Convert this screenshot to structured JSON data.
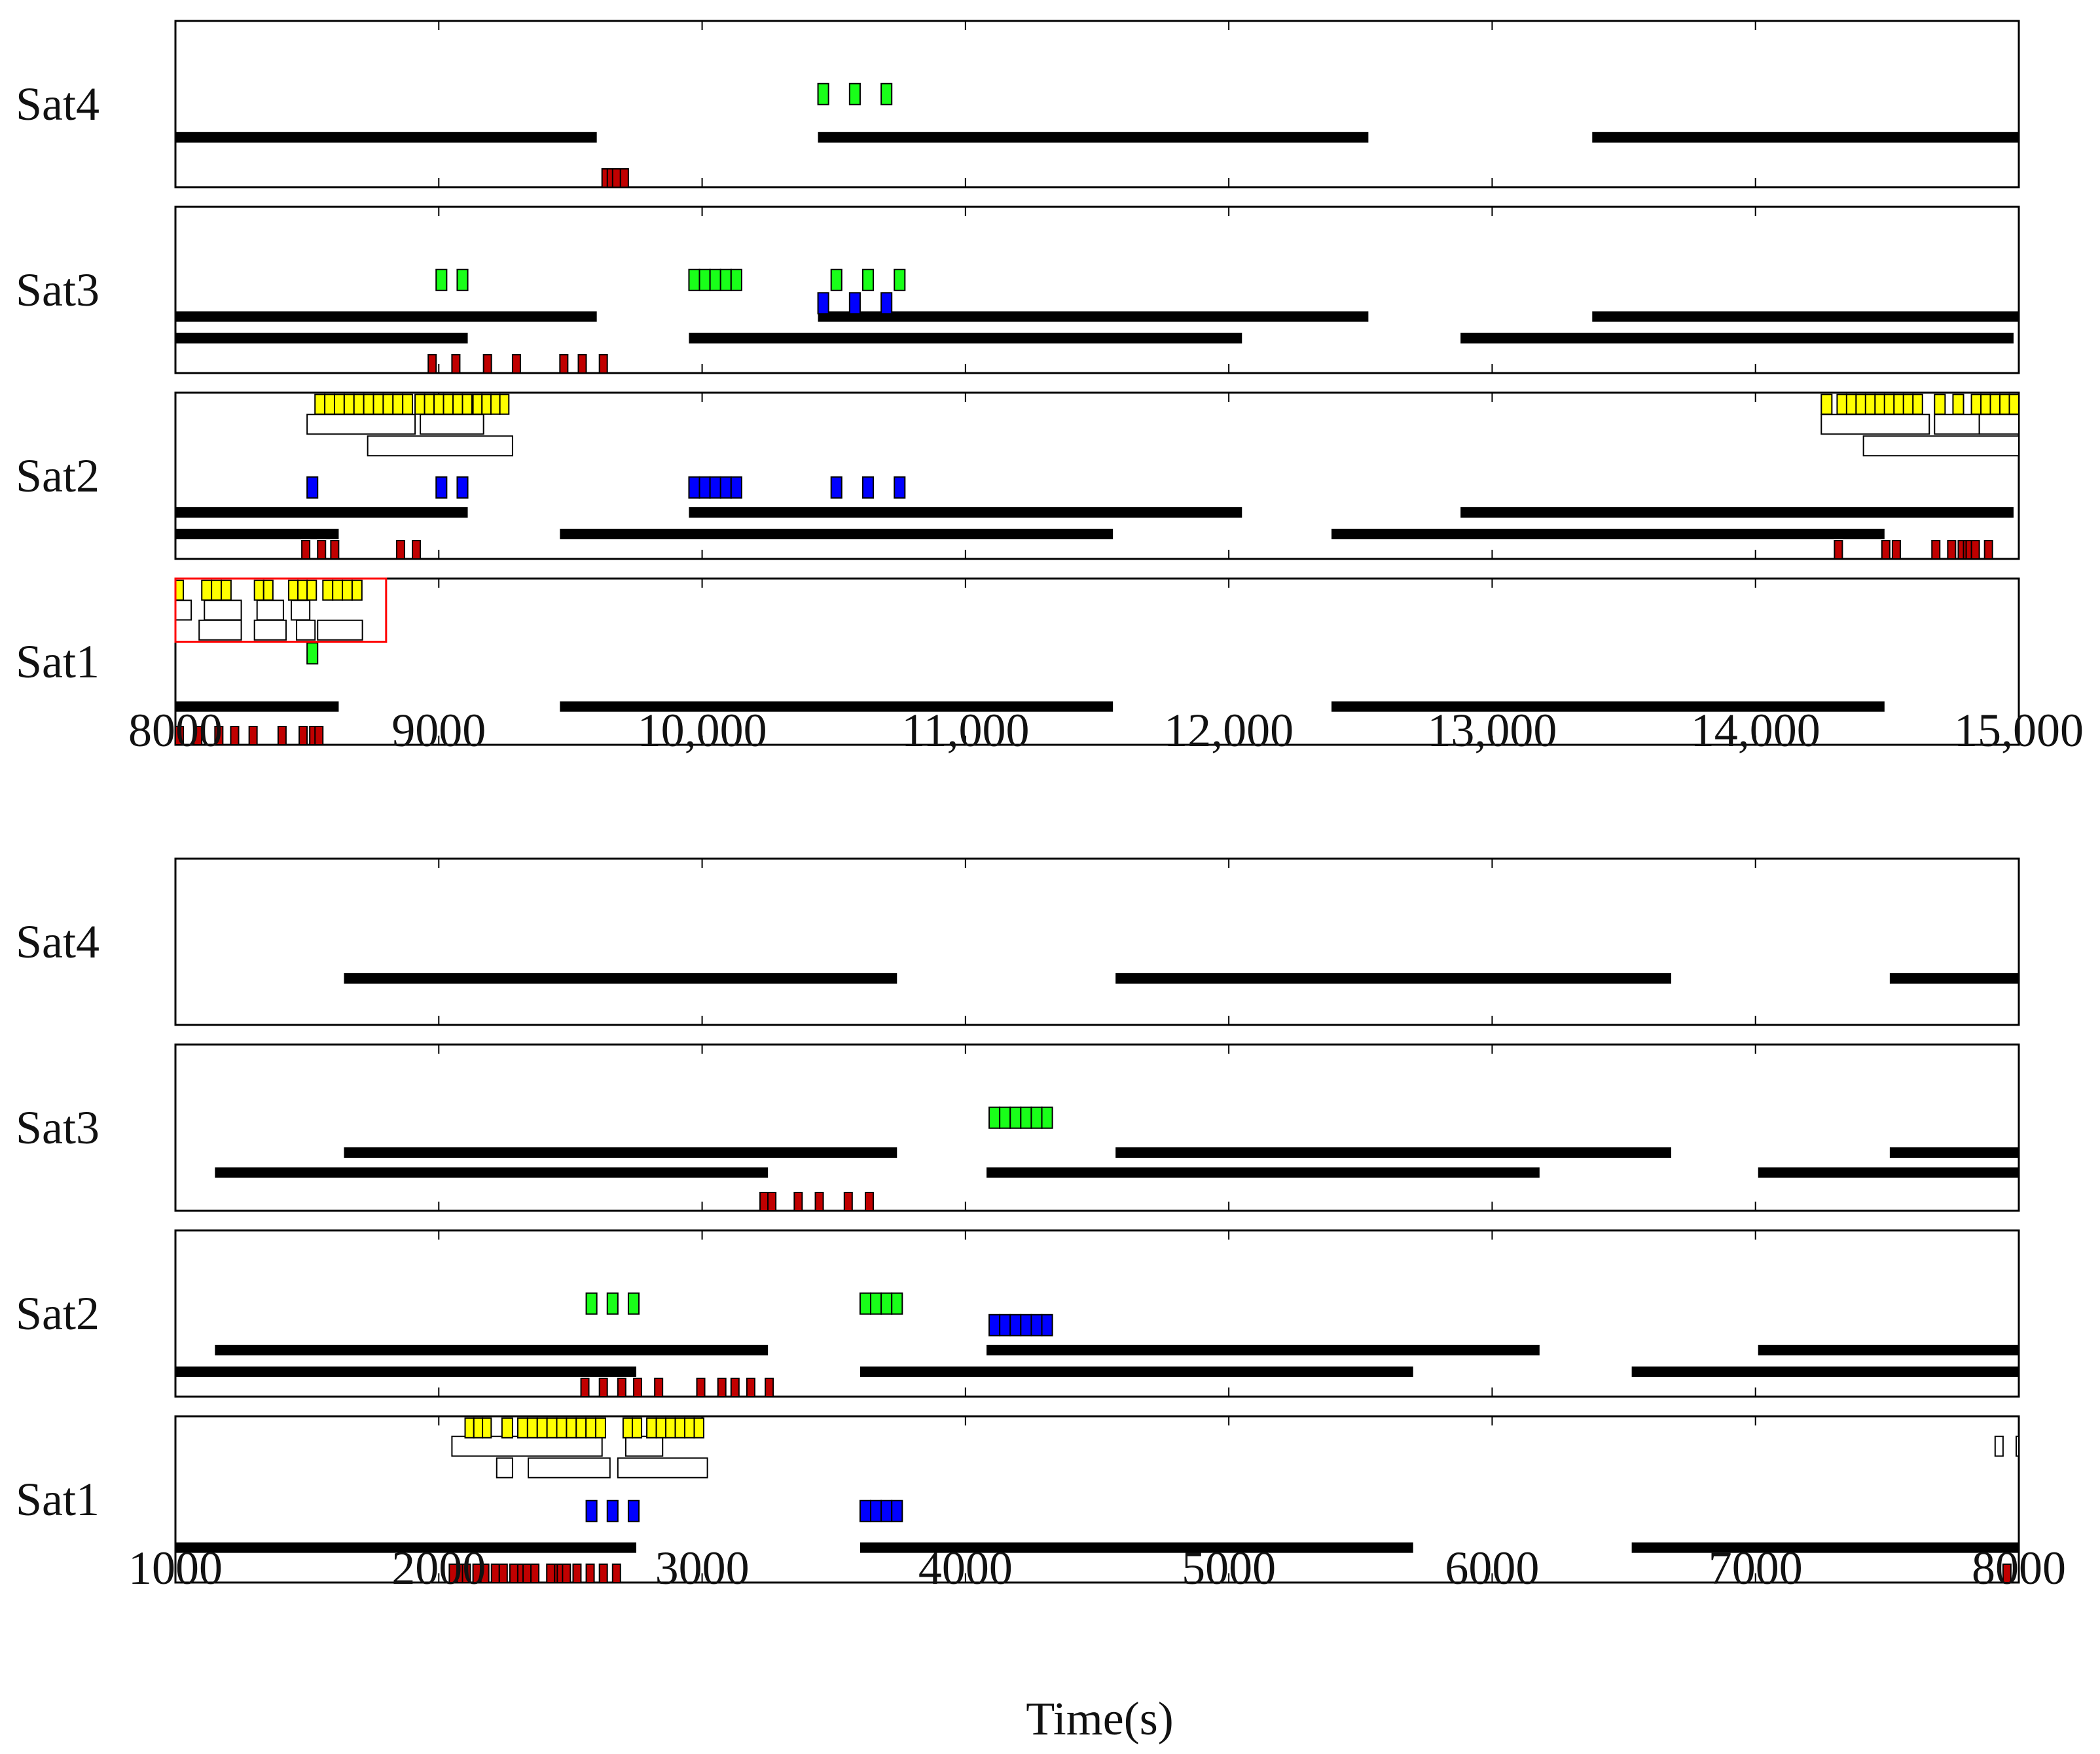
{
  "colors": {
    "bar": "#000000",
    "green": "#19ff19",
    "blue": "#0000ff",
    "yellow": "#ffff00",
    "red": "#c00000",
    "highlight": "#ff0000",
    "frame": "#000000"
  },
  "chart_data": [
    {
      "type": "timeline",
      "title": "",
      "xlabel": "",
      "xlim": [
        8000,
        15000
      ],
      "xticks": [
        8000,
        9000,
        10000,
        11000,
        12000,
        13000,
        14000,
        15000
      ],
      "xtick_labels": [
        "8000",
        "9000",
        "10,000",
        "11,000",
        "12,000",
        "13,000",
        "14,000",
        "15,000"
      ],
      "satellites": [
        {
          "name": "Sat4",
          "visibility_windows": [
            {
              "lane": 0.3,
              "segments": [
                [
                  8000,
                  9600
                ],
                [
                  10440,
                  12530
                ],
                [
                  13380,
                  15000
                ]
              ]
            }
          ],
          "green": [
            {
              "lane": 0.56,
              "start": 10440,
              "count": 1,
              "w": 40
            },
            {
              "lane": 0.56,
              "start": 10560,
              "count": 1,
              "w": 40
            },
            {
              "lane": 0.56,
              "start": 10680,
              "count": 1,
              "w": 40
            }
          ],
          "blue": [],
          "yellow": [],
          "outline": [],
          "red": [
            9620,
            9640,
            9660,
            9690
          ]
        },
        {
          "name": "Sat3",
          "visibility_windows": [
            {
              "lane": 0.34,
              "segments": [
                [
                  8000,
                  9600
                ],
                [
                  10440,
                  12530
                ],
                [
                  13380,
                  15000
                ]
              ]
            },
            {
              "lane": 0.21,
              "segments": [
                [
                  8000,
                  9110
                ],
                [
                  9950,
                  12050
                ],
                [
                  12880,
                  14980
                ]
              ]
            }
          ],
          "green": [
            {
              "lane": 0.56,
              "start": 8990,
              "count": 1,
              "w": 40
            },
            {
              "lane": 0.56,
              "start": 9070,
              "count": 1,
              "w": 40
            },
            {
              "lane": 0.56,
              "start": 9950,
              "count": 5,
              "w": 40
            },
            {
              "lane": 0.56,
              "start": 10490,
              "count": 1,
              "w": 40
            },
            {
              "lane": 0.56,
              "start": 10610,
              "count": 1,
              "w": 40
            },
            {
              "lane": 0.56,
              "start": 10730,
              "count": 1,
              "w": 40
            }
          ],
          "blue": [
            {
              "lane": 0.42,
              "start": 10440,
              "count": 1,
              "w": 40
            },
            {
              "lane": 0.42,
              "start": 10560,
              "count": 1,
              "w": 40
            },
            {
              "lane": 0.42,
              "start": 10680,
              "count": 1,
              "w": 40
            }
          ],
          "yellow": [],
          "outline": [],
          "red": [
            8960,
            9050,
            9170,
            9280,
            9460,
            9530,
            9610
          ]
        },
        {
          "name": "Sat2",
          "visibility_windows": [
            {
              "lane": 0.28,
              "segments": [
                [
                  8000,
                  9110
                ],
                [
                  9950,
                  12050
                ],
                [
                  12880,
                  14980
                ]
              ]
            },
            {
              "lane": 0.15,
              "segments": [
                [
                  8000,
                  8620
                ],
                [
                  9460,
                  11560
                ],
                [
                  12390,
                  14490
                ]
              ]
            }
          ],
          "green": [],
          "blue": [
            {
              "lane": 0.43,
              "start": 8500,
              "count": 1,
              "w": 40
            },
            {
              "lane": 0.43,
              "start": 8990,
              "count": 1,
              "w": 40
            },
            {
              "lane": 0.43,
              "start": 9070,
              "count": 1,
              "w": 40
            },
            {
              "lane": 0.43,
              "start": 9950,
              "count": 5,
              "w": 40
            },
            {
              "lane": 0.43,
              "start": 10490,
              "count": 1,
              "w": 40
            },
            {
              "lane": 0.43,
              "start": 10610,
              "count": 1,
              "w": 40
            },
            {
              "lane": 0.43,
              "start": 10730,
              "count": 1,
              "w": 40
            }
          ],
          "yellow": [
            {
              "lane": 0.93,
              "start": 8530,
              "count": 10,
              "w": 37
            },
            {
              "lane": 0.93,
              "start": 8910,
              "count": 6,
              "w": 36
            },
            {
              "lane": 0.93,
              "start": 9130,
              "count": 4,
              "w": 34
            },
            {
              "lane": 0.93,
              "start": 14250,
              "count": 1,
              "w": 40
            },
            {
              "lane": 0.93,
              "start": 14310,
              "count": 9,
              "w": 36
            },
            {
              "lane": 0.93,
              "start": 14680,
              "count": 1,
              "w": 40
            },
            {
              "lane": 0.93,
              "start": 14750,
              "count": 1,
              "w": 40
            },
            {
              "lane": 0.93,
              "start": 14820,
              "count": 5,
              "w": 36
            }
          ],
          "outline": [
            {
              "lane": 0.81,
              "segments": [
                [
                  8500,
                  8910
                ],
                [
                  8930,
                  9170
                ],
                [
                  14250,
                  14660
                ],
                [
                  14680,
                  14850
                ],
                [
                  14850,
                  15000
                ]
              ]
            },
            {
              "lane": 0.68,
              "segments": [
                [
                  8730,
                  9280
                ],
                [
                  14410,
                  15000
                ]
              ]
            }
          ],
          "red": [
            8480,
            8540,
            8590,
            8840,
            8900,
            14300,
            14480,
            14520,
            14670,
            14730,
            14770,
            14790,
            14800,
            14820,
            14870
          ]
        },
        {
          "name": "Sat1",
          "visibility_windows": [
            {
              "lane": 0.23,
              "segments": [
                [
                  8000,
                  8620
                ],
                [
                  9460,
                  11560
                ],
                [
                  12390,
                  14490
                ]
              ]
            }
          ],
          "green": [
            {
              "lane": 0.55,
              "start": 8500,
              "count": 1,
              "w": 40
            }
          ],
          "blue": [],
          "yellow": [
            {
              "lane": 0.93,
              "start": 8000,
              "count": 1,
              "w": 30
            },
            {
              "lane": 0.93,
              "start": 8100,
              "count": 3,
              "w": 37
            },
            {
              "lane": 0.93,
              "start": 8300,
              "count": 2,
              "w": 35
            },
            {
              "lane": 0.93,
              "start": 8430,
              "count": 3,
              "w": 35
            },
            {
              "lane": 0.93,
              "start": 8560,
              "count": 4,
              "w": 37
            }
          ],
          "outline": [
            {
              "lane": 0.81,
              "segments": [
                [
                  8000,
                  8060
                ],
                [
                  8110,
                  8250
                ],
                [
                  8310,
                  8410
                ],
                [
                  8440,
                  8510
                ]
              ]
            },
            {
              "lane": 0.69,
              "segments": [
                [
                  8090,
                  8250
                ],
                [
                  8300,
                  8420
                ],
                [
                  8460,
                  8530
                ],
                [
                  8540,
                  8710
                ]
              ]
            }
          ],
          "highlight_box": {
            "x0": 8000,
            "x1": 8800,
            "lane_bottom": 0.62,
            "lane_top": 1.0
          },
          "red": [
            8000,
            8070,
            8150,
            8210,
            8280,
            8390,
            8470,
            8510,
            8530
          ]
        }
      ]
    },
    {
      "type": "timeline",
      "title": "",
      "xlabel": "Time(s)",
      "xlim": [
        1000,
        8000
      ],
      "xticks": [
        1000,
        2000,
        3000,
        4000,
        5000,
        6000,
        7000,
        8000
      ],
      "xtick_labels": [
        "1000",
        "2000",
        "3000",
        "4000",
        "5000",
        "6000",
        "7000",
        "8000"
      ],
      "satellites": [
        {
          "name": "Sat4",
          "visibility_windows": [
            {
              "lane": 0.28,
              "segments": [
                [
                  1640,
                  3740
                ],
                [
                  4570,
                  6680
                ],
                [
                  7510,
                  8000
                ]
              ]
            }
          ],
          "green": [],
          "blue": [],
          "yellow": [],
          "outline": [],
          "red": []
        },
        {
          "name": "Sat3",
          "visibility_windows": [
            {
              "lane": 0.35,
              "segments": [
                [
                  1640,
                  3740
                ],
                [
                  4570,
                  6680
                ],
                [
                  7510,
                  8000
                ]
              ]
            },
            {
              "lane": 0.23,
              "segments": [
                [
                  1150,
                  3250
                ],
                [
                  4080,
                  6180
                ],
                [
                  7010,
                  8000
                ]
              ]
            }
          ],
          "green": [
            {
              "lane": 0.56,
              "start": 4090,
              "count": 6,
              "w": 40
            }
          ],
          "blue": [],
          "yellow": [],
          "outline": [],
          "red": [
            3220,
            3250,
            3350,
            3430,
            3540,
            3620
          ]
        },
        {
          "name": "Sat2",
          "visibility_windows": [
            {
              "lane": 0.28,
              "segments": [
                [
                  1150,
                  3250
                ],
                [
                  4080,
                  6180
                ],
                [
                  7010,
                  8000
                ]
              ]
            },
            {
              "lane": 0.15,
              "segments": [
                [
                  1000,
                  2750
                ],
                [
                  3600,
                  5700
                ],
                [
                  6530,
                  8000
                ]
              ]
            }
          ],
          "green": [
            {
              "lane": 0.56,
              "start": 2560,
              "count": 1,
              "w": 40
            },
            {
              "lane": 0.56,
              "start": 2640,
              "count": 1,
              "w": 40
            },
            {
              "lane": 0.56,
              "start": 2720,
              "count": 1,
              "w": 40
            },
            {
              "lane": 0.56,
              "start": 3600,
              "count": 4,
              "w": 40
            }
          ],
          "blue": [
            {
              "lane": 0.43,
              "start": 4090,
              "count": 6,
              "w": 40
            }
          ],
          "yellow": [],
          "outline": [],
          "red": [
            2540,
            2610,
            2680,
            2740,
            2820,
            2980,
            3060,
            3110,
            3170,
            3240
          ]
        },
        {
          "name": "Sat1",
          "visibility_windows": [
            {
              "lane": 0.21,
              "segments": [
                [
                  1000,
                  2750
                ],
                [
                  3600,
                  5700
                ],
                [
                  6530,
                  8000
                ]
              ]
            }
          ],
          "green": [],
          "blue": [
            {
              "lane": 0.43,
              "start": 2560,
              "count": 1,
              "w": 40
            },
            {
              "lane": 0.43,
              "start": 2640,
              "count": 1,
              "w": 40
            },
            {
              "lane": 0.43,
              "start": 2720,
              "count": 1,
              "w": 40
            },
            {
              "lane": 0.43,
              "start": 3600,
              "count": 4,
              "w": 40
            }
          ],
          "yellow": [
            {
              "lane": 0.93,
              "start": 2100,
              "count": 3,
              "w": 33
            },
            {
              "lane": 0.93,
              "start": 2240,
              "count": 1,
              "w": 40
            },
            {
              "lane": 0.93,
              "start": 2300,
              "count": 9,
              "w": 37
            },
            {
              "lane": 0.93,
              "start": 2700,
              "count": 2,
              "w": 35
            },
            {
              "lane": 0.93,
              "start": 2790,
              "count": 6,
              "w": 36
            }
          ],
          "outline": [
            {
              "lane": 0.82,
              "segments": [
                [
                  2050,
                  2620
                ],
                [
                  2710,
                  2850
                ],
                [
                  7910,
                  7940
                ],
                [
                  7990,
                  8000
                ]
              ]
            },
            {
              "lane": 0.69,
              "segments": [
                [
                  2220,
                  2280
                ],
                [
                  2340,
                  2650
                ],
                [
                  2680,
                  3020
                ]
              ]
            }
          ],
          "red": [
            2040,
            2070,
            2090,
            2130,
            2160,
            2200,
            2230,
            2270,
            2300,
            2320,
            2350,
            2410,
            2440,
            2450,
            2470,
            2510,
            2560,
            2610,
            2660,
            7940
          ]
        }
      ]
    }
  ]
}
